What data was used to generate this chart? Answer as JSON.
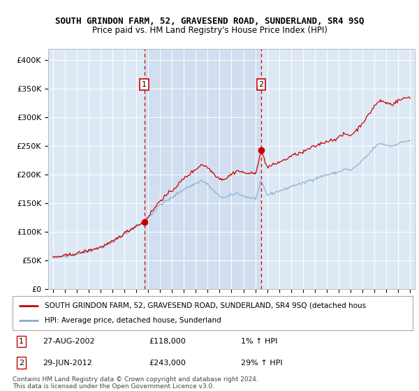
{
  "title": "SOUTH GRINDON FARM, 52, GRAVESEND ROAD, SUNDERLAND, SR4 9SQ",
  "subtitle": "Price paid vs. HM Land Registry's House Price Index (HPI)",
  "ylim": [
    0,
    420000
  ],
  "yticks": [
    0,
    50000,
    100000,
    150000,
    200000,
    250000,
    300000,
    350000,
    400000
  ],
  "ytick_labels": [
    "£0",
    "£50K",
    "£100K",
    "£150K",
    "£200K",
    "£250K",
    "£300K",
    "£350K",
    "£400K"
  ],
  "plot_bg_color": "#dce9f5",
  "highlight_bg_color": "#c8d8ee",
  "sale1_date": 2002.667,
  "sale1_price": 118000,
  "sale2_date": 2012.5,
  "sale2_price": 243000,
  "sale1_date_str": "27-AUG-2002",
  "sale1_price_str": "£118,000",
  "sale1_pct": "1% ↑ HPI",
  "sale2_date_str": "29-JUN-2012",
  "sale2_price_str": "£243,000",
  "sale2_pct": "29% ↑ HPI",
  "red_line_color": "#cc0000",
  "blue_line_color": "#88aacc",
  "legend_line1": "SOUTH GRINDON FARM, 52, GRAVESEND ROAD, SUNDERLAND, SR4 9SQ (detached hous",
  "legend_line2": "HPI: Average price, detached house, Sunderland",
  "footnote": "Contains HM Land Registry data © Crown copyright and database right 2024.\nThis data is licensed under the Open Government Licence v3.0.",
  "xmin": 1995.0,
  "xmax": 2025.0
}
